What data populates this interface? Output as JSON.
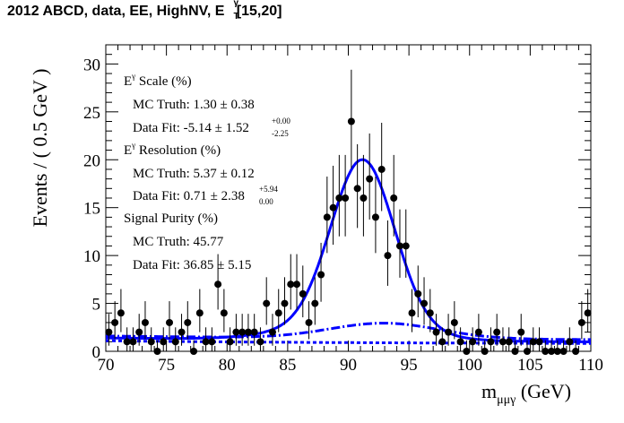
{
  "title": {
    "prefix": "2012 ABCD, data, EE, HighNV, E",
    "sup": "γ",
    "sub": "T",
    "suffix": " [15,20]"
  },
  "axes": {
    "ylabel": "Events / ( 0.5 GeV )",
    "xlabel_main": "m",
    "xlabel_sub": "μμγ",
    "xlabel_unit": " (GeV)"
  },
  "annotations": {
    "scale_header": "E",
    "scale_header_sup": "γ",
    "scale_header_rest": " Scale (%)",
    "scale_mc": "MC Truth: 1.30 ± 0.38",
    "scale_fit": "Data Fit: -5.14 ± 1.52",
    "scale_fit_up": "+0.00",
    "scale_fit_down": "-2.25",
    "res_header": "E",
    "res_header_sup": "γ",
    "res_header_rest": " Resolution (%)",
    "res_mc": "MC Truth: 5.37 ± 0.12",
    "res_fit": "Data Fit: 0.71 ± 2.38",
    "res_fit_up": "+5.94",
    "res_fit_down": "0.00",
    "purity_header": "Signal Purity (%)",
    "purity_mc": "MC Truth: 45.77",
    "purity_fit": "Data Fit: 36.85 ± 5.15"
  },
  "chart_data": {
    "type": "scatter",
    "xlim": [
      70,
      110
    ],
    "ylim": [
      0,
      32
    ],
    "xticks": [
      70,
      75,
      80,
      85,
      90,
      95,
      100,
      105,
      110
    ],
    "yticks": [
      0,
      5,
      10,
      15,
      20,
      25,
      30
    ],
    "xlabel": "m_μμγ (GeV)",
    "ylabel": "Events / ( 0.5 GeV )",
    "data": {
      "x": [
        70.25,
        70.75,
        71.25,
        71.75,
        72.25,
        72.75,
        73.25,
        73.75,
        74.25,
        74.75,
        75.25,
        75.75,
        76.25,
        76.75,
        77.25,
        77.75,
        78.25,
        78.75,
        79.25,
        79.75,
        80.25,
        80.75,
        81.25,
        81.75,
        82.25,
        82.75,
        83.25,
        83.75,
        84.25,
        84.75,
        85.25,
        85.75,
        86.25,
        86.75,
        87.25,
        87.75,
        88.25,
        88.75,
        89.25,
        89.75,
        90.25,
        90.75,
        91.25,
        91.75,
        92.25,
        92.75,
        93.25,
        93.75,
        94.25,
        94.75,
        95.25,
        95.75,
        96.25,
        96.75,
        97.25,
        97.75,
        98.25,
        98.75,
        99.25,
        99.75,
        100.25,
        100.75,
        101.25,
        101.75,
        102.25,
        102.75,
        103.25,
        103.75,
        104.25,
        104.75,
        105.25,
        105.75,
        106.25,
        106.75,
        107.25,
        107.75,
        108.25,
        108.75,
        109.25,
        109.75
      ],
      "y": [
        2,
        3,
        4,
        1,
        1,
        2,
        3,
        1,
        0,
        1,
        3,
        1,
        2,
        3,
        0,
        4,
        1,
        1,
        7,
        4,
        1,
        2,
        2,
        2,
        2,
        1,
        5,
        2,
        4,
        5,
        7,
        7,
        6,
        3,
        5,
        8,
        14,
        15,
        16,
        16,
        24,
        17,
        16,
        18,
        14,
        19,
        10,
        16,
        11,
        11,
        4,
        6,
        5,
        4,
        2,
        1,
        2,
        3,
        1,
        0,
        1,
        2,
        0,
        1,
        2,
        1,
        1,
        0,
        2,
        0,
        1,
        1,
        0,
        0,
        0,
        0,
        1,
        0,
        3,
        4
      ]
    },
    "curves": [
      {
        "style": "solid",
        "color": "#0000ff",
        "role": "total fit"
      },
      {
        "style": "dash-dot",
        "color": "#0000ff",
        "role": "background"
      },
      {
        "style": "dashed",
        "color": "#0000ff",
        "role": "lower component"
      }
    ],
    "grid": false
  }
}
